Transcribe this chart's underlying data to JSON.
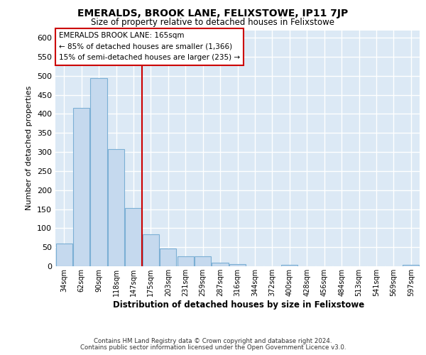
{
  "title": "EMERALDS, BROOK LANE, FELIXSTOWE, IP11 7JP",
  "subtitle": "Size of property relative to detached houses in Felixstowe",
  "xlabel": "Distribution of detached houses by size in Felixstowe",
  "ylabel": "Number of detached properties",
  "annotation_title": "EMERALDS BROOK LANE: 165sqm",
  "annotation_line1": "← 85% of detached houses are smaller (1,366)",
  "annotation_line2": "15% of semi-detached houses are larger (235) →",
  "bar_color": "#c5d9ee",
  "bar_edge_color": "#7bafd4",
  "vline_color": "#cc0000",
  "plot_bg_color": "#dce9f5",
  "footer_line1": "Contains HM Land Registry data © Crown copyright and database right 2024.",
  "footer_line2": "Contains public sector information licensed under the Open Government Licence v3.0.",
  "categories": [
    "34sqm",
    "62sqm",
    "90sqm",
    "118sqm",
    "147sqm",
    "175sqm",
    "203sqm",
    "231sqm",
    "259sqm",
    "287sqm",
    "316sqm",
    "344sqm",
    "372sqm",
    "400sqm",
    "428sqm",
    "456sqm",
    "484sqm",
    "513sqm",
    "541sqm",
    "569sqm",
    "597sqm"
  ],
  "values": [
    60,
    415,
    495,
    308,
    153,
    83,
    47,
    27,
    27,
    10,
    5,
    0,
    0,
    3,
    0,
    0,
    0,
    0,
    0,
    0,
    3
  ],
  "ylim_max": 620,
  "yticks": [
    0,
    50,
    100,
    150,
    200,
    250,
    300,
    350,
    400,
    450,
    500,
    550,
    600
  ],
  "vline_x_index": 4.5
}
